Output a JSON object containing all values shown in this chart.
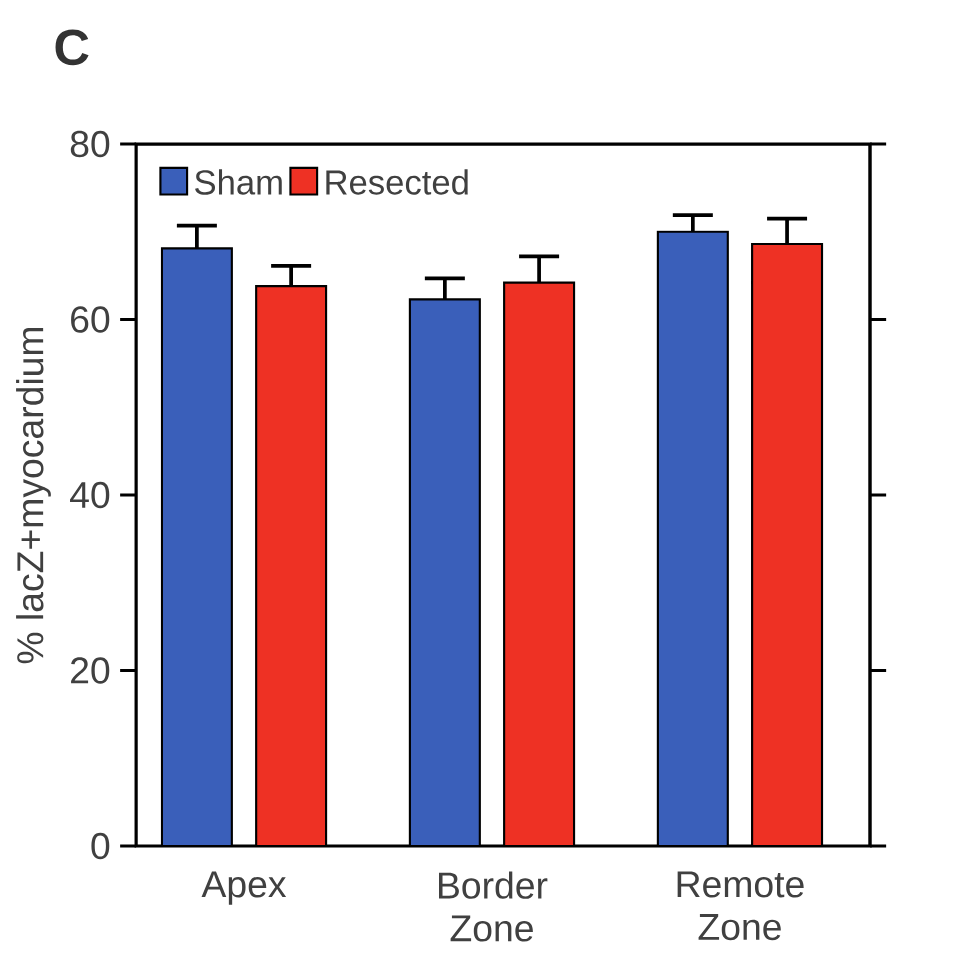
{
  "chart_data": {
    "type": "bar",
    "title": "C",
    "ylabel": "% lacZ+myocardium",
    "categories": [
      "Apex",
      "Border Zone",
      "Remote Zone"
    ],
    "series": [
      {
        "name": "Sham",
        "color": "#3a5fba",
        "values": [
          68.1,
          62.3,
          70.0
        ],
        "errors": [
          2.6,
          2.4,
          1.9
        ]
      },
      {
        "name": "Resected",
        "color": "#ee3124",
        "values": [
          63.8,
          64.2,
          68.6
        ],
        "errors": [
          2.3,
          3.0,
          2.9
        ]
      }
    ],
    "ylim": [
      0,
      80
    ],
    "yticks": [
      0,
      20,
      40,
      60,
      80
    ],
    "legend": "top left",
    "grid": false
  }
}
